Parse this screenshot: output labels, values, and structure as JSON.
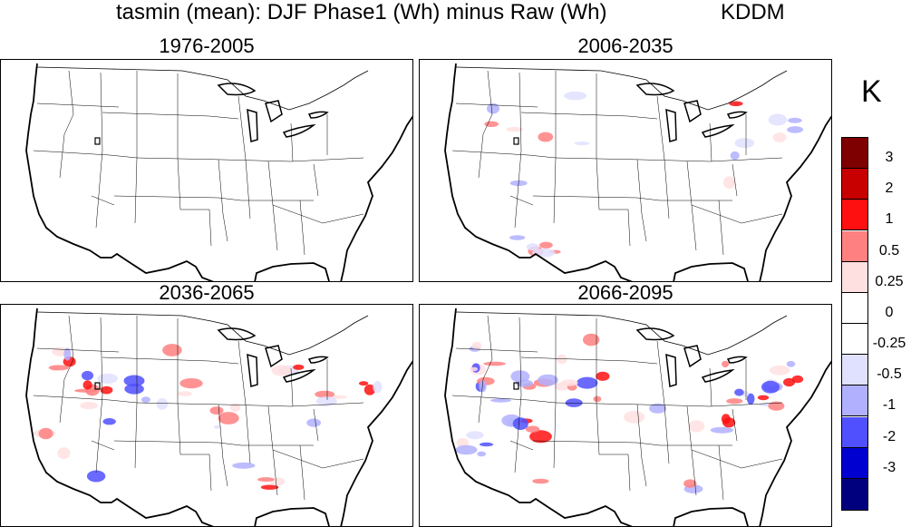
{
  "title": {
    "main": "tasmin (mean): DJF Phase1 (Wh) minus Raw (Wh)",
    "method": "KDDM"
  },
  "panels": [
    {
      "period": "1976-2005",
      "intensity": 0
    },
    {
      "period": "2006-2035",
      "intensity": 0.35
    },
    {
      "period": "2036-2065",
      "intensity": 0.7
    },
    {
      "period": "2066-2095",
      "intensity": 1.0
    }
  ],
  "colorbar": {
    "unit": "K",
    "colors": [
      "#7f0000",
      "#c80000",
      "#ff1010",
      "#ff8080",
      "#ffe0e0",
      "#ffffff",
      "#ffffff",
      "#e0e0ff",
      "#b0b0ff",
      "#5050ff",
      "#0000d0",
      "#00007f"
    ],
    "labels": [
      "3",
      "2",
      "1",
      "0.5",
      "0.25",
      "0",
      "-0.25",
      "-0.5",
      "-1",
      "-2",
      "-3"
    ]
  }
}
